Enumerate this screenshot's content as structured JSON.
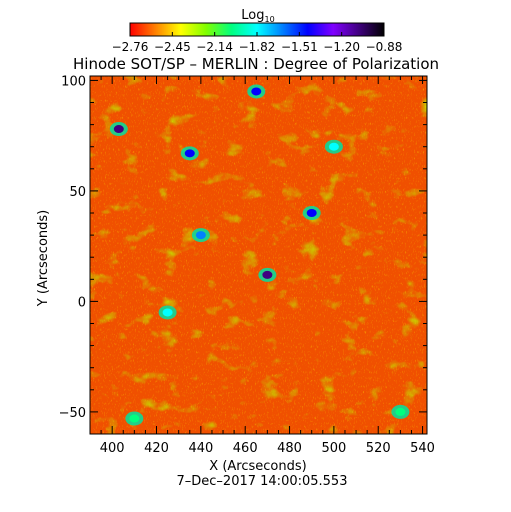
{
  "chart_data": {
    "type": "heatmap",
    "title": "Hinode SOT/SP – MERLIN : Degree of Polarization",
    "subtitle": "7–Dec–2017 14:00:05.553",
    "xlabel": "X (Arcseconds)",
    "ylabel": "Y (Arcseconds)",
    "xlim": [
      390,
      542
    ],
    "ylim": [
      -60,
      102
    ],
    "x_ticks": [
      "400",
      "420",
      "440",
      "460",
      "480",
      "500",
      "520",
      "540"
    ],
    "y_ticks": [
      "−50",
      "0",
      "50",
      "100"
    ],
    "colorbar": {
      "label_base": "Log",
      "label_sub": "10",
      "range": [
        -2.76,
        -0.88
      ],
      "ticks": [
        "−2.76",
        "−2.45",
        "−2.14",
        "−1.82",
        "−1.51",
        "−1.20",
        "−0.88"
      ],
      "colormap": [
        "#ff0000",
        "#ff8000",
        "#ffff00",
        "#80ff00",
        "#00ff80",
        "#00ffff",
        "#0080ff",
        "#0000ff",
        "#8000ff",
        "#400080",
        "#000000"
      ]
    },
    "features": [
      {
        "x": 403,
        "y": 78,
        "value": -1.0
      },
      {
        "x": 470,
        "y": 12,
        "value": -1.1
      },
      {
        "x": 435,
        "y": 67,
        "value": -1.4
      },
      {
        "x": 465,
        "y": 95,
        "value": -1.5
      },
      {
        "x": 440,
        "y": 30,
        "value": -1.6
      },
      {
        "x": 490,
        "y": 40,
        "value": -1.5
      },
      {
        "x": 500,
        "y": 70,
        "value": -1.9
      },
      {
        "x": 425,
        "y": -5,
        "value": -1.8
      },
      {
        "x": 410,
        "y": -53,
        "value": -2.0
      },
      {
        "x": 530,
        "y": -50,
        "value": -2.1
      }
    ]
  }
}
